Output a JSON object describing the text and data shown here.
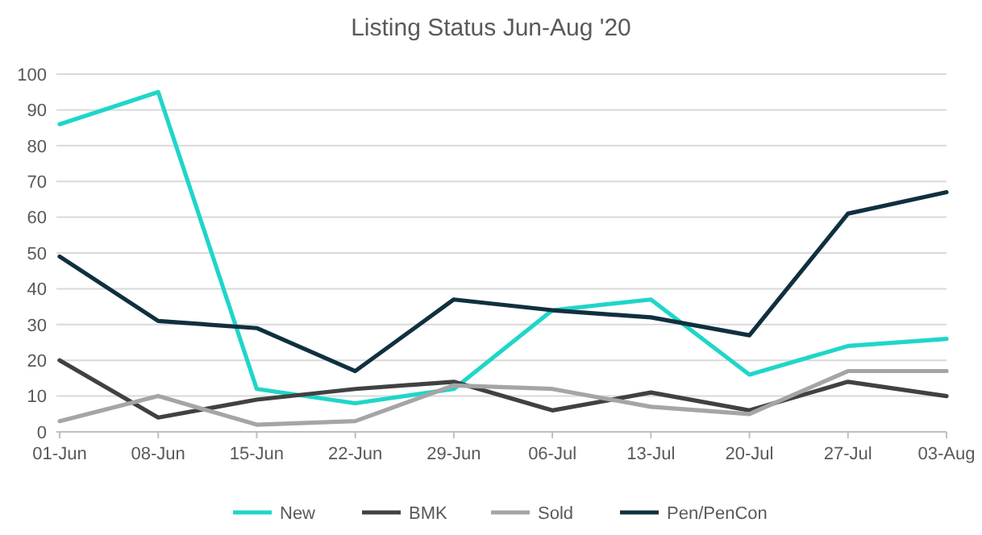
{
  "chart_data": {
    "type": "line",
    "title": "Listing Status Jun-Aug '20",
    "categories": [
      "01-Jun",
      "08-Jun",
      "15-Jun",
      "22-Jun",
      "29-Jun",
      "06-Jul",
      "13-Jul",
      "20-Jul",
      "27-Jul",
      "03-Aug"
    ],
    "series": [
      {
        "name": "New",
        "color": "#1fd6c8",
        "values": [
          86,
          95,
          12,
          8,
          12,
          34,
          37,
          16,
          24,
          26
        ]
      },
      {
        "name": "BMK",
        "color": "#3f4142",
        "values": [
          20,
          4,
          9,
          12,
          14,
          6,
          11,
          6,
          14,
          10
        ]
      },
      {
        "name": "Sold",
        "color": "#a5a5a5",
        "values": [
          3,
          10,
          2,
          3,
          13,
          12,
          7,
          5,
          17,
          17
        ]
      },
      {
        "name": "Pen/PenCon",
        "color": "#10303f",
        "values": [
          49,
          31,
          29,
          17,
          37,
          34,
          32,
          27,
          61,
          67
        ]
      }
    ],
    "ylim": [
      0,
      100
    ],
    "yticks": [
      0,
      10,
      20,
      30,
      40,
      50,
      60,
      70,
      80,
      90,
      100
    ],
    "grid": "y",
    "legend": "bottom",
    "marker": "none",
    "line_style": "solid"
  }
}
